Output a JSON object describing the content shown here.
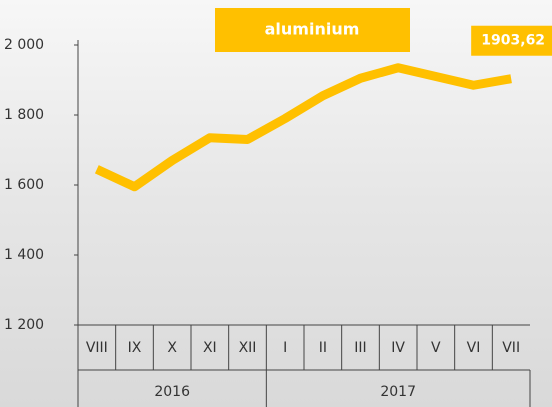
{
  "chart_data": {
    "type": "line",
    "title": "aluminium",
    "category_groups": [
      {
        "name": "2016",
        "categories": [
          "VIII",
          "IX",
          "X",
          "XI",
          "XII"
        ]
      },
      {
        "name": "2017",
        "categories": [
          "I",
          "II",
          "III",
          "IV",
          "V",
          "VI",
          "VII"
        ]
      }
    ],
    "series": [
      {
        "name": "aluminium",
        "color": "#ffc000",
        "values": [
          1645,
          1595,
          1670,
          1735,
          1730,
          1790,
          1855,
          1905,
          1935,
          1910,
          1885,
          1903.62
        ],
        "value_labels": [
          null,
          null,
          null,
          null,
          null,
          null,
          null,
          null,
          null,
          null,
          null,
          "1903,62"
        ]
      }
    ],
    "ylim": [
      1200,
      2000
    ],
    "yticks": [
      {
        "value": 1200,
        "label": "1 200"
      },
      {
        "value": 1400,
        "label": "1 400"
      },
      {
        "value": 1600,
        "label": "1 600"
      },
      {
        "value": 1800,
        "label": "1 800"
      },
      {
        "value": 2000,
        "label": "2 000"
      }
    ],
    "grid": false
  }
}
